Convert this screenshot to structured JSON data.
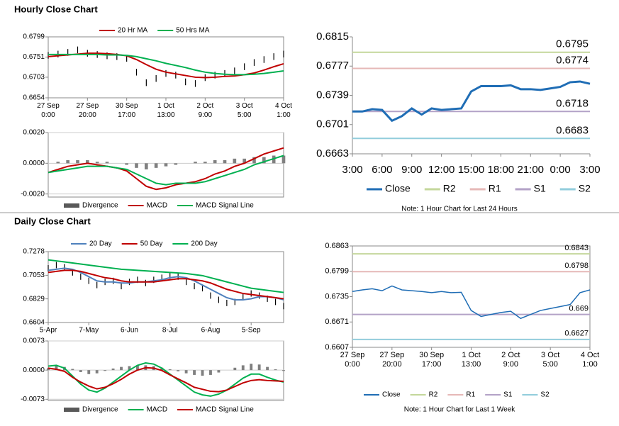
{
  "sections": [
    "Hourly Close Chart",
    "Daily Close Chart"
  ],
  "chart_data": [
    {
      "type": "hilo",
      "categories": [
        "27 Sep\n0:00",
        null,
        null,
        null,
        "27 Sep\n20:00",
        null,
        null,
        null,
        "30 Sep\n17:00",
        null,
        null,
        null,
        "1 Oct\n13:00",
        null,
        null,
        null,
        "2 Oct\n9:00",
        null,
        null,
        null,
        "3 Oct\n5:00",
        null,
        null,
        null,
        "4 Oct\n1:00"
      ],
      "ylim": [
        0.6654,
        0.6799
      ],
      "yticks": [
        0.6654,
        0.6703,
        0.6751,
        0.6799
      ],
      "legend": "top",
      "bars": {
        "color": "#000000",
        "high": [
          0.6763,
          0.6766,
          0.677,
          0.6776,
          0.6768,
          0.6765,
          0.6762,
          0.676,
          0.6756,
          0.6723,
          0.6698,
          0.6708,
          0.672,
          0.6716,
          0.67,
          0.6696,
          0.671,
          0.6716,
          0.672,
          0.6726,
          0.6736,
          0.6746,
          0.6753,
          0.676,
          0.6766
        ],
        "low": [
          0.6747,
          0.675,
          0.6754,
          0.676,
          0.6752,
          0.6749,
          0.6746,
          0.6744,
          0.674,
          0.6707,
          0.6682,
          0.6692,
          0.6704,
          0.67,
          0.6684,
          0.668,
          0.6694,
          0.67,
          0.6704,
          0.671,
          0.672,
          0.673,
          0.6737,
          0.6744,
          0.675
        ]
      },
      "series": [
        {
          "name": "20 Hr MA",
          "color": "#c00000",
          "values": [
            0.6752,
            0.6754,
            0.6756,
            0.6758,
            0.676,
            0.676,
            0.6759,
            0.6757,
            0.6754,
            0.6745,
            0.6733,
            0.6722,
            0.6715,
            0.6711,
            0.6707,
            0.6703,
            0.6702,
            0.6703,
            0.6705,
            0.6706,
            0.6709,
            0.6713,
            0.672,
            0.6728,
            0.6735
          ]
        },
        {
          "name": "50 Hrs MA",
          "color": "#00b050",
          "values": [
            0.6757,
            0.6757,
            0.6757,
            0.6757,
            0.6757,
            0.6757,
            0.6756,
            0.6756,
            0.6755,
            0.6752,
            0.6747,
            0.6742,
            0.6736,
            0.6731,
            0.6726,
            0.672,
            0.6715,
            0.6712,
            0.671,
            0.6709,
            0.6709,
            0.671,
            0.6712,
            0.6715,
            0.6718
          ]
        }
      ]
    },
    {
      "type": "macd",
      "categories": [
        null,
        null,
        null,
        null,
        null,
        null,
        null,
        null,
        null,
        null,
        null,
        null,
        null,
        null,
        null,
        null,
        null,
        null,
        null,
        null,
        null,
        null,
        null,
        null,
        null
      ],
      "ylim": [
        -0.0022,
        0.002
      ],
      "yticks": [
        {
          "value": -0.002,
          "label": "-0.0020"
        },
        {
          "value": 0,
          "label": "0.0000"
        },
        {
          "value": 0.002,
          "label": "0.0020"
        }
      ],
      "legend": "bottom",
      "series": [
        {
          "name": "Divergence",
          "type": "bar",
          "color": "#808080",
          "values": [
            0.0,
            0.0001,
            0.0002,
            0.0002,
            0.0002,
            0.0001,
            0.0001,
            0.0,
            -0.0001,
            -0.0003,
            -0.0004,
            -0.0003,
            -0.0002,
            -0.0001,
            0.0,
            0.0001,
            0.0001,
            0.0002,
            0.0002,
            0.0003,
            0.0003,
            0.0004,
            0.0004,
            0.0005,
            0.0005
          ]
        },
        {
          "name": "MACD",
          "color": "#c00000",
          "values": [
            -0.0006,
            -0.0004,
            -0.0002,
            -0.0001,
            0.0,
            -0.0001,
            -0.0002,
            -0.0003,
            -0.0005,
            -0.001,
            -0.0015,
            -0.0017,
            -0.0016,
            -0.0014,
            -0.0013,
            -0.0012,
            -0.001,
            -0.0007,
            -0.0005,
            -0.0002,
            0.0,
            0.0003,
            0.0006,
            0.0008,
            0.001
          ]
        },
        {
          "name": "MACD Signal Line",
          "color": "#00b050",
          "values": [
            -0.0006,
            -0.0005,
            -0.0004,
            -0.0003,
            -0.0002,
            -0.0002,
            -0.0002,
            -0.0003,
            -0.0004,
            -0.0007,
            -0.001,
            -0.0013,
            -0.0014,
            -0.0013,
            -0.0013,
            -0.0013,
            -0.0012,
            -0.001,
            -0.0008,
            -0.0006,
            -0.0004,
            -0.0001,
            0.0001,
            0.0003,
            0.0005
          ]
        }
      ]
    },
    {
      "type": "line",
      "categories": [
        "3:00",
        null,
        null,
        "6:00",
        null,
        null,
        "9:00",
        null,
        null,
        "12:00",
        null,
        null,
        "15:00",
        null,
        null,
        "18:00",
        null,
        null,
        "21:00",
        null,
        null,
        "0:00",
        null,
        null,
        "3:00"
      ],
      "ylim": [
        0.6663,
        0.6815
      ],
      "yticks": [
        0.6663,
        0.6701,
        0.6739,
        0.6777,
        0.6815
      ],
      "legend": "bottom",
      "series": [
        {
          "name": "Close",
          "color": "#1f6db5",
          "values": [
            0.6718,
            0.6718,
            0.6721,
            0.672,
            0.6706,
            0.6712,
            0.6722,
            0.6714,
            0.6722,
            0.672,
            0.6721,
            0.6722,
            0.6744,
            0.6751,
            0.6751,
            0.6751,
            0.6752,
            0.6747,
            0.6747,
            0.6746,
            0.6748,
            0.675,
            0.6756,
            0.6757,
            0.6754
          ]
        }
      ],
      "levels": [
        {
          "name": "R2",
          "color": "#c4d79b",
          "value": 0.6795
        },
        {
          "name": "R1",
          "color": "#e6b8b7",
          "value": 0.6774
        },
        {
          "name": "S1",
          "color": "#b3a2c7",
          "value": 0.6718
        },
        {
          "name": "S2",
          "color": "#92cddc",
          "value": 0.6683
        }
      ],
      "note": "Note: 1 Hour Chart for Last 24 Hours"
    },
    {
      "type": "hilo",
      "categories": [
        "5-Apr",
        null,
        null,
        null,
        null,
        "7-May",
        null,
        null,
        null,
        null,
        "6-Jun",
        null,
        null,
        null,
        null,
        "8-Jul",
        null,
        null,
        null,
        null,
        "6-Aug",
        null,
        null,
        null,
        null,
        "5-Sep",
        null,
        null,
        null,
        null
      ],
      "ylim": [
        0.6604,
        0.7278
      ],
      "yticks": [
        0.6604,
        0.6829,
        0.7053,
        0.7278
      ],
      "legend": "top",
      "bars": {
        "color": "#000000",
        "high": [
          0.715,
          0.718,
          0.716,
          0.711,
          0.707,
          0.703,
          0.699,
          0.702,
          0.703,
          0.698,
          0.702,
          0.704,
          0.701,
          0.704,
          0.706,
          0.708,
          0.707,
          0.702,
          0.698,
          0.696,
          0.689,
          0.685,
          0.682,
          0.683,
          0.688,
          0.691,
          0.689,
          0.686,
          0.683,
          0.679
        ],
        "low": [
          0.709,
          0.712,
          0.71,
          0.705,
          0.701,
          0.697,
          0.693,
          0.696,
          0.697,
          0.692,
          0.696,
          0.698,
          0.695,
          0.698,
          0.7,
          0.702,
          0.701,
          0.696,
          0.692,
          0.69,
          0.683,
          0.679,
          0.676,
          0.677,
          0.682,
          0.685,
          0.683,
          0.68,
          0.677,
          0.673
        ]
      },
      "series": [
        {
          "name": "20 Day",
          "color": "#4f81bd",
          "values": [
            0.71,
            0.711,
            0.712,
            0.711,
            0.708,
            0.704,
            0.7,
            0.699,
            0.699,
            0.698,
            0.698,
            0.699,
            0.699,
            0.7,
            0.701,
            0.703,
            0.704,
            0.703,
            0.7,
            0.696,
            0.692,
            0.688,
            0.684,
            0.682,
            0.682,
            0.683,
            0.685,
            0.685,
            0.684,
            0.682
          ]
        },
        {
          "name": "50 Day",
          "color": "#c00000",
          "values": [
            0.708,
            0.709,
            0.71,
            0.71,
            0.709,
            0.707,
            0.705,
            0.703,
            0.702,
            0.7,
            0.699,
            0.699,
            0.699,
            0.699,
            0.7,
            0.701,
            0.702,
            0.702,
            0.701,
            0.7,
            0.698,
            0.695,
            0.692,
            0.69,
            0.688,
            0.687,
            0.686,
            0.685,
            0.684,
            0.683
          ]
        },
        {
          "name": "200 Day",
          "color": "#00b050",
          "values": [
            0.72,
            0.719,
            0.718,
            0.717,
            0.716,
            0.715,
            0.714,
            0.713,
            0.712,
            0.711,
            0.7105,
            0.71,
            0.7095,
            0.709,
            0.7085,
            0.708,
            0.7075,
            0.707,
            0.706,
            0.705,
            0.703,
            0.701,
            0.699,
            0.697,
            0.695,
            0.693,
            0.692,
            0.691,
            0.69,
            0.689
          ]
        }
      ]
    },
    {
      "type": "macd",
      "categories": [
        null,
        null,
        null,
        null,
        null,
        null,
        null,
        null,
        null,
        null,
        null,
        null,
        null,
        null,
        null,
        null,
        null,
        null,
        null,
        null,
        null,
        null,
        null,
        null,
        null,
        null,
        null,
        null,
        null,
        null
      ],
      "ylim": [
        -0.0076,
        0.0073
      ],
      "yticks": [
        {
          "value": -0.0073,
          "label": "-0.0073"
        },
        {
          "value": 0,
          "label": "0.0000"
        },
        {
          "value": 0.0073,
          "label": "0.0073"
        }
      ],
      "legend": "bottom",
      "series": [
        {
          "name": "Divergence",
          "type": "bar",
          "color": "#808080",
          "values": [
            0.0005,
            0.001,
            0.0008,
            0.0003,
            -0.0005,
            -0.001,
            -0.0008,
            -0.0002,
            0.0004,
            0.0008,
            0.001,
            0.0012,
            0.0012,
            0.001,
            0.0006,
            0.0002,
            -0.0003,
            -0.0008,
            -0.0012,
            -0.0014,
            -0.0012,
            -0.0006,
            0.0,
            0.0006,
            0.0012,
            0.0016,
            0.0014,
            0.0008,
            0.0002,
            -0.0002
          ]
        },
        {
          "name": "MACD",
          "color": "#00b050",
          "values": [
            0.001,
            0.0012,
            0.0005,
            -0.0015,
            -0.0035,
            -0.005,
            -0.0055,
            -0.0045,
            -0.003,
            -0.0015,
            0.0,
            0.0012,
            0.0018,
            0.0015,
            0.0005,
            -0.001,
            -0.0025,
            -0.004,
            -0.0055,
            -0.0062,
            -0.0065,
            -0.006,
            -0.005,
            -0.0035,
            -0.002,
            -0.001,
            -0.001,
            -0.0018,
            -0.0025,
            -0.003
          ]
        },
        {
          "name": "MACD Signal Line",
          "color": "#c00000",
          "values": [
            0.0005,
            0.0002,
            -0.0003,
            -0.0018,
            -0.003,
            -0.004,
            -0.0047,
            -0.0043,
            -0.0034,
            -0.0023,
            -0.001,
            0.0,
            0.0006,
            0.0005,
            -0.0001,
            -0.0012,
            -0.0022,
            -0.0032,
            -0.0043,
            -0.0048,
            -0.0053,
            -0.0054,
            -0.005,
            -0.0041,
            -0.0032,
            -0.0026,
            -0.0024,
            -0.0026,
            -0.0027,
            -0.0028
          ]
        }
      ]
    },
    {
      "type": "line",
      "categories": [
        "27 Sep\n0:00",
        null,
        null,
        null,
        "27 Sep\n20:00",
        null,
        null,
        null,
        "30 Sep\n17:00",
        null,
        null,
        null,
        "1 Oct\n13:00",
        null,
        null,
        null,
        "2 Oct\n9:00",
        null,
        null,
        null,
        "3 Oct\n5:00",
        null,
        null,
        null,
        "4 Oct\n1:00"
      ],
      "ylim": [
        0.6607,
        0.6863
      ],
      "yticks": [
        0.6607,
        0.6671,
        0.6735,
        0.6799,
        0.6863
      ],
      "legend": "bottom",
      "series": [
        {
          "name": "Close",
          "color": "#1f6db5",
          "values": [
            0.6748,
            0.6752,
            0.6755,
            0.675,
            0.6762,
            0.6752,
            0.675,
            0.6748,
            0.6745,
            0.6748,
            0.6745,
            0.6746,
            0.67,
            0.6685,
            0.669,
            0.6695,
            0.6698,
            0.668,
            0.669,
            0.67,
            0.6705,
            0.671,
            0.6715,
            0.6745,
            0.6752
          ]
        }
      ],
      "levels": [
        {
          "name": "R2",
          "color": "#c4d79b",
          "value": 0.6843
        },
        {
          "name": "R1",
          "color": "#e6b8b7",
          "value": 0.6798
        },
        {
          "name": "S1",
          "color": "#b3a2c7",
          "value": 0.669
        },
        {
          "name": "S2",
          "color": "#92cddc",
          "value": 0.6627
        }
      ],
      "note": "Note: 1 Hour Chart for Last 1 Week"
    }
  ]
}
